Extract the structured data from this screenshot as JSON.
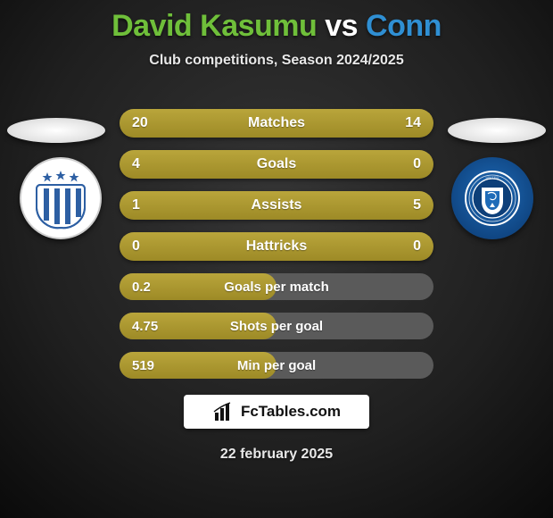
{
  "header": {
    "player1": "David Kasumu",
    "vs": "vs",
    "player2": "Conn",
    "player1_color": "#6fbf3a",
    "vs_color": "#ffffff",
    "player2_color": "#2f8fd3",
    "subtitle": "Club competitions, Season 2024/2025"
  },
  "colors": {
    "bar_fill": "#a89230",
    "bar_empty": "#5a5a5a",
    "background": "#2a2a2a",
    "text_light": "#e8e8e8",
    "crest_right_bg": "#0d3f79"
  },
  "rows": [
    {
      "left": "20",
      "label": "Matches",
      "right": "14",
      "fill_pct": 100
    },
    {
      "left": "4",
      "label": "Goals",
      "right": "0",
      "fill_pct": 100
    },
    {
      "left": "1",
      "label": "Assists",
      "right": "5",
      "fill_pct": 100
    },
    {
      "left": "0",
      "label": "Hattricks",
      "right": "0",
      "fill_pct": 100
    },
    {
      "left": "0.2",
      "label": "Goals per match",
      "right": "",
      "fill_pct": 50
    },
    {
      "left": "4.75",
      "label": "Shots per goal",
      "right": "",
      "fill_pct": 50
    },
    {
      "left": "519",
      "label": "Min per goal",
      "right": "",
      "fill_pct": 50
    }
  ],
  "footer": {
    "brand": "FcTables.com",
    "date": "22 february 2025"
  }
}
